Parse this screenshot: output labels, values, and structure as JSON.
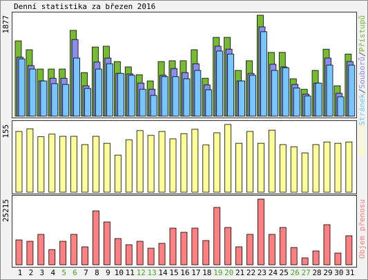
{
  "title": "Denní statistika za březen 2016",
  "chart_data": [
    {
      "type": "bar",
      "ylim": [
        0,
        1877
      ],
      "yticks": [
        1877
      ],
      "series": [
        {
          "name": "Přístupů",
          "color": "#77bb33",
          "values": [
            1400,
            1235,
            875,
            875,
            875,
            1595,
            810,
            1285,
            1300,
            1015,
            915,
            770,
            655,
            1015,
            1030,
            1030,
            1235,
            705,
            1465,
            1465,
            850,
            1030,
            1877,
            1185,
            1185,
            695,
            500,
            850,
            1245,
            565,
            1155
          ]
        },
        {
          "name": "Souborů",
          "color": "#8c8cf0",
          "values": [
            1095,
            940,
            655,
            705,
            705,
            1425,
            565,
            1005,
            1080,
            795,
            785,
            615,
            500,
            760,
            885,
            810,
            975,
            580,
            1300,
            1245,
            655,
            795,
            1660,
            965,
            915,
            590,
            410,
            615,
            1080,
            425,
            1015
          ]
        },
        {
          "name": "Stránek",
          "color": "#77c6ff",
          "values": [
            1065,
            875,
            655,
            605,
            590,
            1080,
            515,
            875,
            975,
            795,
            760,
            500,
            385,
            735,
            735,
            695,
            850,
            490,
            1210,
            1155,
            655,
            760,
            1570,
            850,
            900,
            525,
            375,
            615,
            950,
            360,
            950
          ]
        }
      ]
    },
    {
      "type": "bar",
      "ylim": [
        0,
        155
      ],
      "yticks": [
        155
      ],
      "series": [
        {
          "name": "Návštěv",
          "color": "#ffff99",
          "values": [
            139,
            145,
            127,
            133,
            128,
            128,
            109,
            128,
            112,
            85,
            120,
            141,
            130,
            139,
            122,
            134,
            144,
            108,
            136,
            155,
            112,
            139,
            112,
            142,
            109,
            104,
            90,
            109,
            115,
            112,
            115
          ]
        }
      ]
    },
    {
      "type": "bar",
      "ylim": [
        0,
        25215
      ],
      "yticks": [
        25215
      ],
      "series": [
        {
          "name": "Objem přenosu",
          "color": "#ff8080",
          "values": [
            9555,
            9025,
            11680,
            5840,
            9025,
            11680,
            6900,
            20700,
            16455,
            10085,
            7700,
            9025,
            6370,
            8230,
            14070,
            12475,
            14070,
            9290,
            22030,
            14335,
            6900,
            11680,
            25215,
            11680,
            14335,
            6635,
            2655,
            5310,
            15395,
            4510,
            11150
          ]
        }
      ],
      "categories": [
        "1",
        "2",
        "3",
        "4",
        "5",
        "6",
        "7",
        "8",
        "9",
        "10",
        "11",
        "12",
        "13",
        "14",
        "15",
        "16",
        "17",
        "18",
        "19",
        "20",
        "21",
        "22",
        "23",
        "24",
        "25",
        "26",
        "27",
        "28",
        "29",
        "30",
        "31"
      ],
      "category_colors": [
        "#000000",
        "#000000",
        "#000000",
        "#000000",
        "#44aa22",
        "#44aa22",
        "#000000",
        "#000000",
        "#000000",
        "#000000",
        "#000000",
        "#44aa22",
        "#44aa22",
        "#000000",
        "#000000",
        "#000000",
        "#000000",
        "#000000",
        "#44aa22",
        "#44aa22",
        "#000000",
        "#000000",
        "#000000",
        "#000000",
        "#000000",
        "#44aa22",
        "#44aa22",
        "#000000",
        "#000000",
        "#000000",
        "#000000"
      ]
    }
  ]
}
